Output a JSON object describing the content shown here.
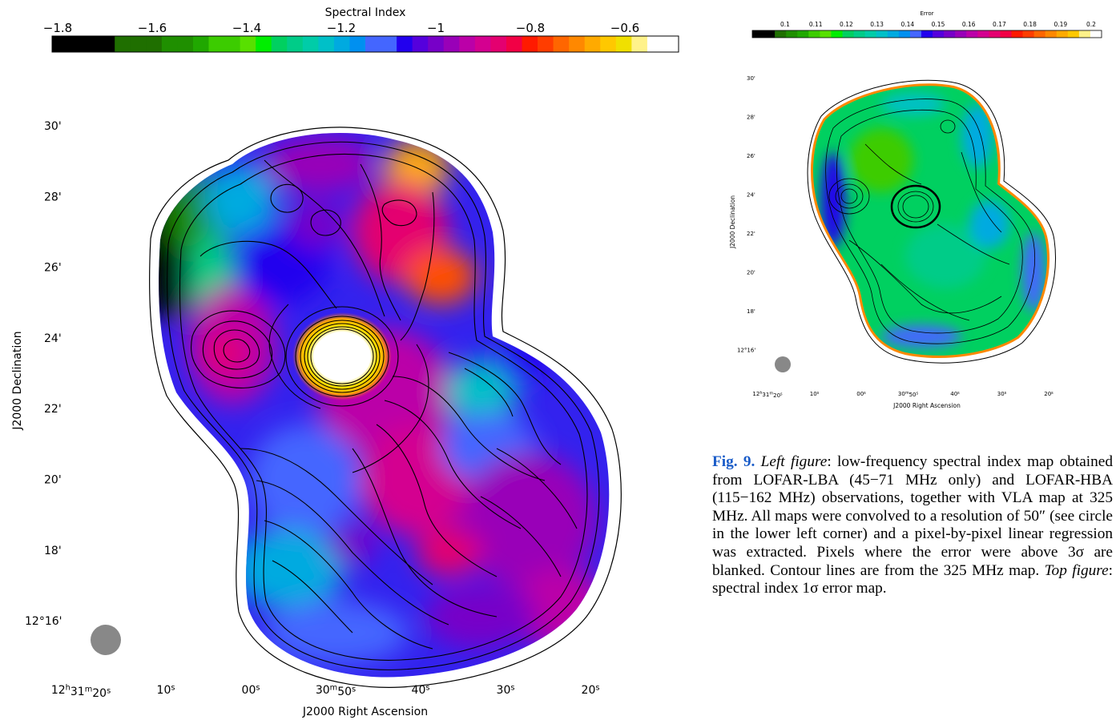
{
  "left_figure": {
    "colorbar_title": "Spectral Index",
    "colorbar_ticks": [
      "−1.8",
      "−1.6",
      "−1.4",
      "−1.2",
      "−1",
      "−0.8",
      "−0.6"
    ],
    "colorbar_colors": [
      "#000000",
      "#000000",
      "#000000",
      "#000000",
      "#1f6f00",
      "#1f6f00",
      "#1f6f00",
      "#1f8f00",
      "#1f8f00",
      "#20a800",
      "#3ccc00",
      "#3ccc00",
      "#58e000",
      "#00ee00",
      "#00d060",
      "#00cc88",
      "#00cca8",
      "#00c0c8",
      "#00aae0",
      "#0090f0",
      "#4466ff",
      "#4466ff",
      "#2200ee",
      "#5500dd",
      "#7700c8",
      "#9900b8",
      "#bb00a8",
      "#d40090",
      "#e40070",
      "#f20045",
      "#ff1a00",
      "#ff3d00",
      "#ff6600",
      "#ff8800",
      "#ffaa00",
      "#ffc800",
      "#f0e000",
      "#fff28a",
      "#ffffff",
      "#ffffff"
    ],
    "dec_ticks": [
      "30'",
      "28'",
      "26'",
      "24'",
      "22'",
      "20'",
      "18'",
      "12°16'"
    ],
    "ra_ticks": [
      "12h31m20s",
      "10s",
      "00s",
      "30m50s",
      "40s",
      "30s",
      "20s"
    ],
    "xlabel": "J2000 Right Ascension",
    "ylabel": "J2000 Declination"
  },
  "right_figure": {
    "colorbar_title": "Error",
    "colorbar_ticks": [
      "0.1",
      "0.11",
      "0.12",
      "0.13",
      "0.14",
      "0.15",
      "0.16",
      "0.17",
      "0.18",
      "0.19",
      "0.2"
    ],
    "colorbar_colors": [
      "#000000",
      "#000000",
      "#1f6f00",
      "#1f8f00",
      "#20a800",
      "#3ccc00",
      "#58e000",
      "#00ee00",
      "#00d060",
      "#00cc88",
      "#00cca8",
      "#00c0c8",
      "#00aae0",
      "#0090f0",
      "#4466ff",
      "#2200ee",
      "#5500dd",
      "#7700c8",
      "#9900b8",
      "#bb00a8",
      "#d40090",
      "#e40070",
      "#f20045",
      "#ff1a00",
      "#ff3d00",
      "#ff6600",
      "#ff8800",
      "#ffaa00",
      "#ffc800",
      "#fff28a",
      "#ffffff"
    ],
    "dec_ticks": [
      "30'",
      "28'",
      "26'",
      "24'",
      "22'",
      "20'",
      "18'",
      "12°16'"
    ],
    "ra_ticks": [
      "12h31m20s",
      "10s",
      "00s",
      "30m50s",
      "40s",
      "30s",
      "20s"
    ],
    "xlabel": "J2000 Right Ascension",
    "ylabel": "J2000 Declination"
  },
  "caption": {
    "figure_label": "Fig. 9.",
    "left_label": "Left figure",
    "left_text": ": low-frequency spectral index map obtained from LOFAR-LBA (45−71 MHz only) and LOFAR-HBA (115−162 MHz) observations, together with VLA map at 325 MHz. All maps were convolved to a resolution of 50″ (see circle in the lower left corner) and a pixel-by-pixel linear regression was extracted. Pixels where the error were above 3σ are blanked. Contour lines are from the 325 MHz map. ",
    "top_label": "Top figure",
    "top_text": ": spectral index 1σ error map."
  }
}
